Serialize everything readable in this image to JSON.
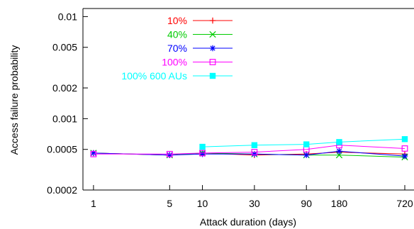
{
  "chart_data": {
    "type": "line",
    "xlabel": "Attack duration (days)",
    "ylabel": "Access failure probability",
    "x_scale": "log",
    "y_scale": "log",
    "xlim": [
      0.8,
      720
    ],
    "ylim": [
      0.0002,
      0.012
    ],
    "x_ticks": [
      1,
      5,
      10,
      30,
      90,
      180,
      720
    ],
    "x_tick_labels": [
      "1",
      "5",
      "10",
      "30",
      "90",
      "180",
      "720"
    ],
    "y_ticks": [
      0.0002,
      0.0005,
      0.001,
      0.002,
      0.005,
      0.01
    ],
    "y_tick_labels": [
      "0.0002",
      "0.0005",
      "0.001",
      "0.002",
      "0.005",
      "0.01"
    ],
    "legend_position": "top-center",
    "series": [
      {
        "name": "10%",
        "color": "#ff0000",
        "marker": "plus",
        "x": [
          1,
          5,
          10,
          30,
          90,
          180,
          720
        ],
        "y": [
          0.00046,
          0.00044,
          0.00046,
          0.00044,
          0.00045,
          0.00047,
          0.00045
        ]
      },
      {
        "name": "40%",
        "color": "#00cc00",
        "marker": "cross",
        "x": [
          1,
          5,
          10,
          30,
          90,
          180,
          720
        ],
        "y": [
          0.00046,
          0.00044,
          0.00046,
          0.00045,
          0.00044,
          0.00044,
          0.00042
        ]
      },
      {
        "name": "70%",
        "color": "#0000ff",
        "marker": "asterisk",
        "x": [
          1,
          5,
          10,
          30,
          90,
          180,
          720
        ],
        "y": [
          0.00046,
          0.00044,
          0.00045,
          0.00045,
          0.00044,
          0.00048,
          0.00043
        ]
      },
      {
        "name": "100%",
        "color": "#ff00ff",
        "marker": "open-square",
        "x": [
          1,
          5,
          10,
          30,
          90,
          180,
          720
        ],
        "y": [
          0.00045,
          0.00045,
          0.00046,
          0.00047,
          0.0005,
          0.00055,
          0.00051
        ]
      },
      {
        "name": "100% 600 AUs",
        "color": "#00ffff",
        "marker": "filled-square",
        "x": [
          10,
          30,
          90,
          180,
          720
        ],
        "y": [
          0.00053,
          0.00055,
          0.00056,
          0.00059,
          0.00063
        ]
      }
    ]
  }
}
